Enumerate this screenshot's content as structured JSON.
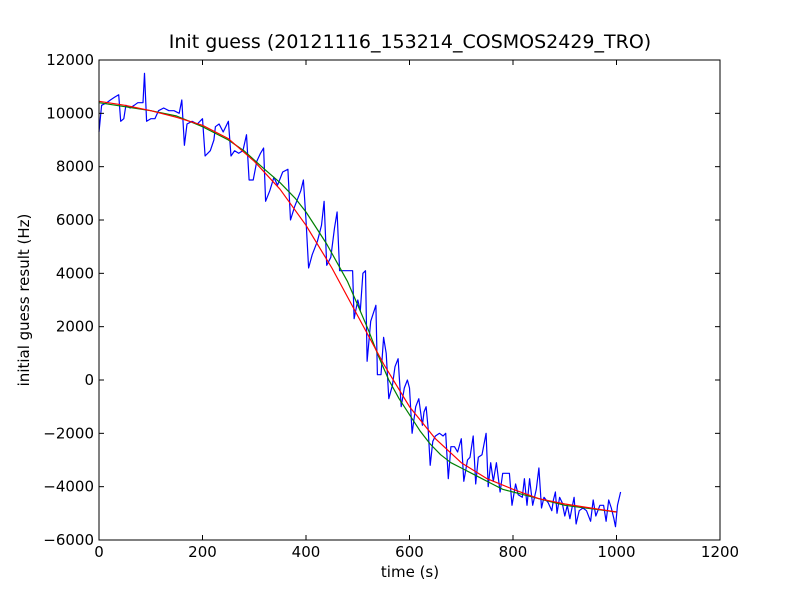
{
  "chart_data": {
    "type": "line",
    "title": "Init guess (20121116_153214_COSMOS2429_TRO)",
    "xlabel": "time (s)",
    "ylabel": "initial guess result (Hz)",
    "xlim": [
      0,
      1200
    ],
    "ylim": [
      -6000,
      12000
    ],
    "xticks": [
      0,
      200,
      400,
      600,
      800,
      1000,
      1200
    ],
    "yticks": [
      -6000,
      -4000,
      -2000,
      0,
      2000,
      4000,
      6000,
      8000,
      10000,
      12000
    ],
    "grid": false,
    "legend": "none",
    "series": [
      {
        "color": "#0000ff",
        "points": [
          [
            0,
            9300
          ],
          [
            5,
            10300
          ],
          [
            15,
            10400
          ],
          [
            22,
            10500
          ],
          [
            30,
            10600
          ],
          [
            38,
            10700
          ],
          [
            42,
            9700
          ],
          [
            48,
            9800
          ],
          [
            52,
            10300
          ],
          [
            60,
            10200
          ],
          [
            68,
            10300
          ],
          [
            75,
            10400
          ],
          [
            85,
            10400
          ],
          [
            88,
            11500
          ],
          [
            92,
            9700
          ],
          [
            100,
            9800
          ],
          [
            108,
            9800
          ],
          [
            115,
            10100
          ],
          [
            125,
            10200
          ],
          [
            135,
            10100
          ],
          [
            145,
            10100
          ],
          [
            155,
            10000
          ],
          [
            160,
            10500
          ],
          [
            165,
            8800
          ],
          [
            170,
            9600
          ],
          [
            180,
            9700
          ],
          [
            190,
            9600
          ],
          [
            200,
            9800
          ],
          [
            205,
            8400
          ],
          [
            215,
            8600
          ],
          [
            222,
            9000
          ],
          [
            225,
            9500
          ],
          [
            232,
            9600
          ],
          [
            240,
            9300
          ],
          [
            250,
            9700
          ],
          [
            255,
            8400
          ],
          [
            262,
            8600
          ],
          [
            270,
            8500
          ],
          [
            278,
            8600
          ],
          [
            285,
            9200
          ],
          [
            290,
            7500
          ],
          [
            298,
            7500
          ],
          [
            305,
            8200
          ],
          [
            312,
            8500
          ],
          [
            318,
            8700
          ],
          [
            322,
            6700
          ],
          [
            330,
            7100
          ],
          [
            338,
            7600
          ],
          [
            345,
            7300
          ],
          [
            355,
            7800
          ],
          [
            365,
            7900
          ],
          [
            370,
            6000
          ],
          [
            378,
            6500
          ],
          [
            390,
            7100
          ],
          [
            395,
            7500
          ],
          [
            400,
            6000
          ],
          [
            405,
            4200
          ],
          [
            412,
            4700
          ],
          [
            422,
            5200
          ],
          [
            430,
            5800
          ],
          [
            435,
            6700
          ],
          [
            440,
            4300
          ],
          [
            448,
            4600
          ],
          [
            455,
            5700
          ],
          [
            460,
            6300
          ],
          [
            465,
            4100
          ],
          [
            475,
            4100
          ],
          [
            485,
            4100
          ],
          [
            490,
            4100
          ],
          [
            493,
            2300
          ],
          [
            500,
            3000
          ],
          [
            505,
            2600
          ],
          [
            510,
            4000
          ],
          [
            515,
            4100
          ],
          [
            518,
            700
          ],
          [
            525,
            2200
          ],
          [
            530,
            2500
          ],
          [
            535,
            2800
          ],
          [
            538,
            200
          ],
          [
            545,
            200
          ],
          [
            550,
            1600
          ],
          [
            555,
            1000
          ],
          [
            560,
            -700
          ],
          [
            567,
            -200
          ],
          [
            572,
            500
          ],
          [
            578,
            800
          ],
          [
            584,
            -1000
          ],
          [
            590,
            -300
          ],
          [
            596,
            0
          ],
          [
            600,
            -300
          ],
          [
            605,
            -2000
          ],
          [
            612,
            -1000
          ],
          [
            618,
            -700
          ],
          [
            625,
            -1700
          ],
          [
            628,
            -1200
          ],
          [
            632,
            -1000
          ],
          [
            636,
            -1800
          ],
          [
            640,
            -3200
          ],
          [
            645,
            -2300
          ],
          [
            650,
            -2100
          ],
          [
            658,
            -2000
          ],
          [
            665,
            -2100
          ],
          [
            670,
            -2000
          ],
          [
            675,
            -3700
          ],
          [
            680,
            -2500
          ],
          [
            687,
            -2500
          ],
          [
            693,
            -2700
          ],
          [
            700,
            -2200
          ],
          [
            705,
            -3800
          ],
          [
            712,
            -3000
          ],
          [
            717,
            -2900
          ],
          [
            723,
            -2100
          ],
          [
            728,
            -3900
          ],
          [
            733,
            -2900
          ],
          [
            740,
            -2800
          ],
          [
            748,
            -2000
          ],
          [
            752,
            -4000
          ],
          [
            757,
            -3100
          ],
          [
            762,
            -3800
          ],
          [
            768,
            -3100
          ],
          [
            775,
            -4200
          ],
          [
            780,
            -3500
          ],
          [
            787,
            -3500
          ],
          [
            793,
            -3500
          ],
          [
            798,
            -4700
          ],
          [
            805,
            -3900
          ],
          [
            810,
            -4300
          ],
          [
            818,
            -4400
          ],
          [
            822,
            -3700
          ],
          [
            827,
            -4700
          ],
          [
            832,
            -3700
          ],
          [
            838,
            -4700
          ],
          [
            845,
            -4100
          ],
          [
            850,
            -3300
          ],
          [
            855,
            -4800
          ],
          [
            860,
            -4400
          ],
          [
            868,
            -4600
          ],
          [
            875,
            -4900
          ],
          [
            878,
            -4500
          ],
          [
            882,
            -4200
          ],
          [
            885,
            -5000
          ],
          [
            890,
            -4400
          ],
          [
            895,
            -4600
          ],
          [
            900,
            -5100
          ],
          [
            905,
            -4700
          ],
          [
            910,
            -5200
          ],
          [
            915,
            -4700
          ],
          [
            918,
            -4400
          ],
          [
            922,
            -5400
          ],
          [
            928,
            -4900
          ],
          [
            935,
            -4800
          ],
          [
            942,
            -4900
          ],
          [
            950,
            -5300
          ],
          [
            955,
            -4500
          ],
          [
            960,
            -5100
          ],
          [
            968,
            -4700
          ],
          [
            975,
            -4700
          ],
          [
            980,
            -5300
          ],
          [
            985,
            -4500
          ],
          [
            990,
            -4800
          ],
          [
            995,
            -5200
          ],
          [
            998,
            -5500
          ],
          [
            1002,
            -4700
          ],
          [
            1008,
            -4200
          ]
        ]
      },
      {
        "color": "#008000",
        "points": [
          [
            0,
            10400
          ],
          [
            50,
            10250
          ],
          [
            100,
            10100
          ],
          [
            150,
            9900
          ],
          [
            200,
            9500
          ],
          [
            250,
            9000
          ],
          [
            280,
            8600
          ],
          [
            320,
            7900
          ],
          [
            350,
            7400
          ],
          [
            380,
            6800
          ],
          [
            400,
            6300
          ],
          [
            420,
            5700
          ],
          [
            440,
            5100
          ],
          [
            460,
            4400
          ],
          [
            480,
            3700
          ],
          [
            500,
            2800
          ],
          [
            520,
            1900
          ],
          [
            540,
            900
          ],
          [
            560,
            0
          ],
          [
            580,
            -700
          ],
          [
            600,
            -1300
          ],
          [
            620,
            -1900
          ],
          [
            640,
            -2400
          ],
          [
            660,
            -2800
          ],
          [
            680,
            -3100
          ],
          [
            700,
            -3300
          ],
          [
            720,
            -3500
          ],
          [
            740,
            -3700
          ],
          [
            760,
            -3900
          ],
          [
            780,
            -4100
          ],
          [
            800,
            -4200
          ],
          [
            820,
            -4300
          ],
          [
            840,
            -4400
          ],
          [
            860,
            -4500
          ],
          [
            880,
            -4600
          ],
          [
            900,
            -4700
          ],
          [
            920,
            -4750
          ],
          [
            940,
            -4800
          ],
          [
            960,
            -4850
          ],
          [
            980,
            -4900
          ],
          [
            1000,
            -4950
          ]
        ]
      },
      {
        "color": "#ff0000",
        "points": [
          [
            0,
            10450
          ],
          [
            50,
            10300
          ],
          [
            100,
            10100
          ],
          [
            150,
            9850
          ],
          [
            200,
            9550
          ],
          [
            250,
            9050
          ],
          [
            300,
            8200
          ],
          [
            350,
            7150
          ],
          [
            400,
            5800
          ],
          [
            450,
            4200
          ],
          [
            500,
            2400
          ],
          [
            550,
            600
          ],
          [
            600,
            -1000
          ],
          [
            650,
            -2200
          ],
          [
            700,
            -3100
          ],
          [
            750,
            -3700
          ],
          [
            800,
            -4100
          ],
          [
            850,
            -4450
          ],
          [
            900,
            -4650
          ],
          [
            950,
            -4800
          ],
          [
            1000,
            -4950
          ]
        ]
      }
    ]
  }
}
